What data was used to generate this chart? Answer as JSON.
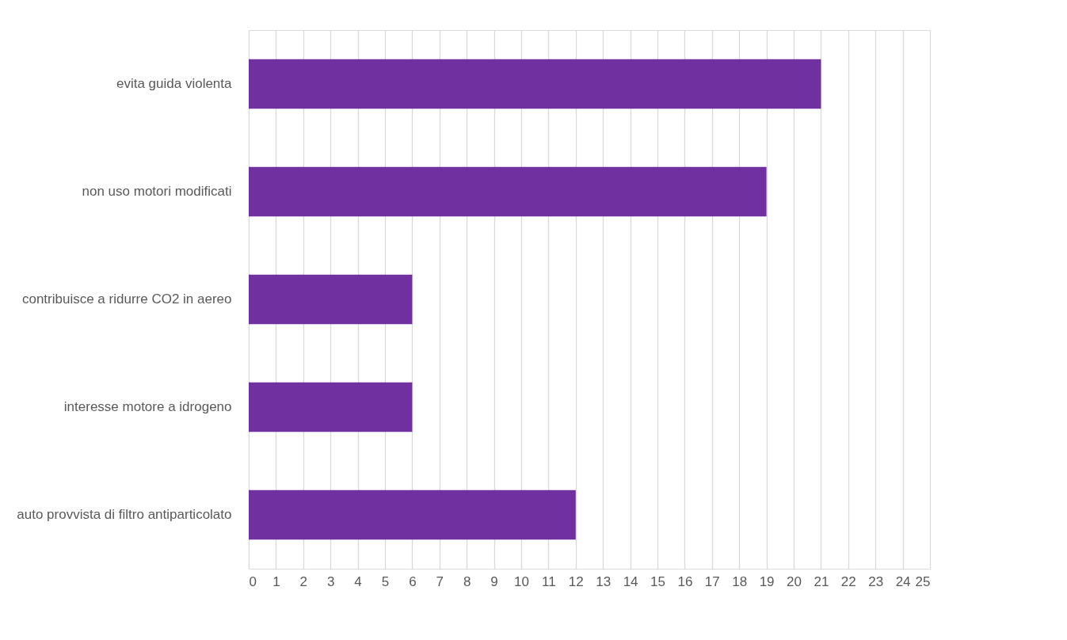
{
  "chart_data": {
    "type": "bar",
    "orientation": "horizontal",
    "categories": [
      "evita guida violenta",
      "non uso motori modificati",
      "contribuisce a ridurre CO2 in aereo",
      "interesse motore a idrogeno",
      "auto provvista di filtro antiparticolato"
    ],
    "values": [
      21,
      19,
      6,
      6,
      12
    ],
    "color": "#7030a0",
    "xlim": [
      0,
      25
    ],
    "xticks": [
      0,
      1,
      2,
      3,
      4,
      5,
      6,
      7,
      8,
      9,
      10,
      11,
      12,
      13,
      14,
      15,
      16,
      17,
      18,
      19,
      20,
      21,
      22,
      23,
      24,
      25
    ],
    "grid": "x"
  }
}
